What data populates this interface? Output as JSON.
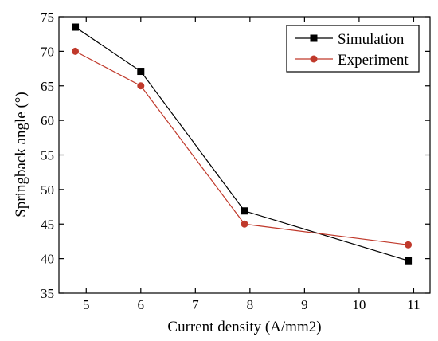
{
  "chart_data": {
    "type": "line",
    "title": "",
    "xlabel": "Current density (A/mm2)",
    "ylabel": "Springback angle (°)",
    "xlim": [
      4.5,
      11.3
    ],
    "ylim": [
      35,
      75
    ],
    "xticks": [
      5,
      6,
      7,
      8,
      9,
      10,
      11
    ],
    "yticks": [
      35,
      40,
      45,
      50,
      55,
      60,
      65,
      70,
      75
    ],
    "grid": false,
    "legend_position": "top-right",
    "series": [
      {
        "name": "Simulation",
        "color": "#000000",
        "marker": "square",
        "x": [
          4.8,
          6.0,
          7.9,
          10.9
        ],
        "y": [
          73.5,
          67.1,
          46.9,
          39.7
        ]
      },
      {
        "name": "Experiment",
        "color": "#c0392b",
        "marker": "circle",
        "x": [
          4.8,
          6.0,
          7.9,
          10.9
        ],
        "y": [
          70.0,
          65.0,
          45.0,
          42.0
        ]
      }
    ]
  }
}
